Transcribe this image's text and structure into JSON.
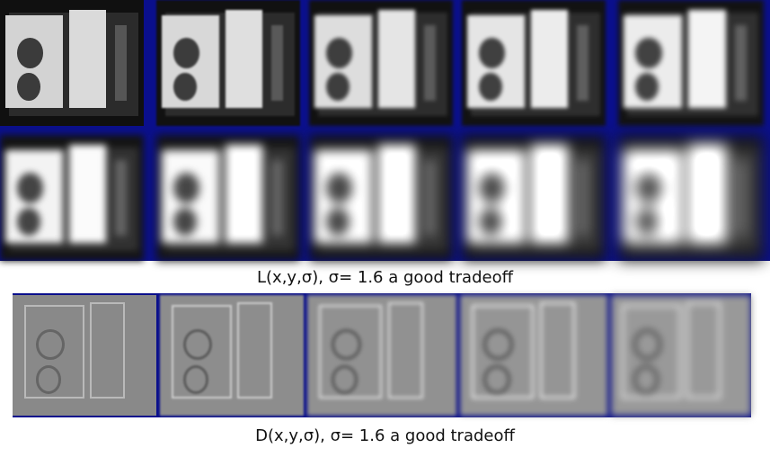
{
  "figure": {
    "caption_top": "L(x,y,σ), σ= 1.6 a good tradeoff",
    "caption_bottom": "D(x,y,σ), σ= 1.6 a good tradeoff"
  },
  "gaussian_rows": [
    {
      "blur_levels": [
        0.05,
        0.12,
        0.2,
        0.3,
        0.4
      ]
    },
    {
      "blur_levels": [
        0.5,
        0.6,
        0.7,
        0.82,
        0.95
      ]
    }
  ],
  "dog_row": {
    "contrast_levels": [
      0.12,
      0.3,
      0.5,
      0.7,
      0.9
    ]
  }
}
